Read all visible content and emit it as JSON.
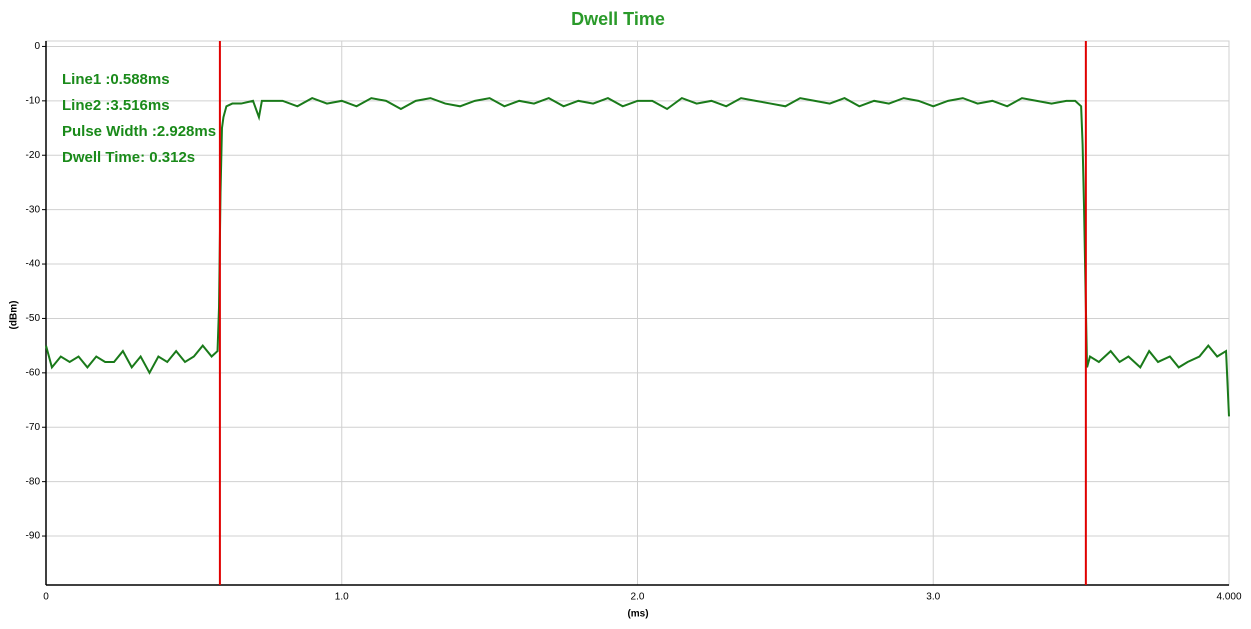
{
  "chart_data": {
    "type": "line",
    "title": "Dwell Time",
    "xlabel": "(ms)",
    "ylabel": "(dBm)",
    "annotations": [
      "Line1 :0.588ms",
      "Line2 :3.516ms",
      "Pulse Width :2.928ms",
      "Dwell Time: 0.312s"
    ],
    "markers": [
      {
        "x": 0.588,
        "color": "#e00000"
      },
      {
        "x": 3.516,
        "color": "#e00000"
      }
    ],
    "xlim": [
      0,
      4
    ],
    "ylim": [
      -99,
      1
    ],
    "xticks": [
      0,
      {
        "value": 1,
        "label": "1.0"
      },
      {
        "value": 2,
        "label": "2.0"
      },
      {
        "value": 3,
        "label": "3.0"
      },
      {
        "value": 4,
        "label": "4.000"
      }
    ],
    "yticks": [
      0,
      -10,
      -20,
      -30,
      -40,
      -50,
      -60,
      -70,
      -80,
      -90
    ],
    "grid": true,
    "series": [
      {
        "color": "#1a7a1a",
        "x": [
          0,
          0.02,
          0.05,
          0.08,
          0.11,
          0.14,
          0.17,
          0.2,
          0.23,
          0.26,
          0.29,
          0.32,
          0.35,
          0.38,
          0.41,
          0.44,
          0.47,
          0.5,
          0.53,
          0.56,
          0.58,
          0.585,
          0.59,
          0.595,
          0.6,
          0.61,
          0.63,
          0.66,
          0.7,
          0.72,
          0.73,
          0.76,
          0.8,
          0.85,
          0.9,
          0.95,
          1.0,
          1.05,
          1.1,
          1.15,
          1.2,
          1.25,
          1.3,
          1.35,
          1.4,
          1.45,
          1.5,
          1.55,
          1.6,
          1.65,
          1.7,
          1.75,
          1.8,
          1.85,
          1.9,
          1.95,
          2.0,
          2.05,
          2.1,
          2.15,
          2.2,
          2.25,
          2.3,
          2.35,
          2.4,
          2.45,
          2.5,
          2.55,
          2.6,
          2.65,
          2.7,
          2.75,
          2.8,
          2.85,
          2.9,
          2.95,
          3.0,
          3.05,
          3.1,
          3.15,
          3.2,
          3.25,
          3.3,
          3.35,
          3.4,
          3.45,
          3.48,
          3.5,
          3.505,
          3.51,
          3.515,
          3.52,
          3.53,
          3.56,
          3.6,
          3.63,
          3.66,
          3.7,
          3.73,
          3.76,
          3.8,
          3.83,
          3.86,
          3.9,
          3.93,
          3.96,
          3.99,
          4.0
        ],
        "values": [
          -55,
          -59,
          -57,
          -58,
          -57,
          -59,
          -57,
          -58,
          -58,
          -56,
          -59,
          -57,
          -60,
          -57,
          -58,
          -56,
          -58,
          -57,
          -55,
          -57,
          -56,
          -48,
          -27,
          -15,
          -13,
          -11,
          -10.5,
          -10.5,
          -10,
          -13,
          -10,
          -10,
          -10,
          -11,
          -9.5,
          -10.5,
          -10,
          -11,
          -9.5,
          -10,
          -11.5,
          -10,
          -9.5,
          -10.5,
          -11,
          -10,
          -9.5,
          -11,
          -10,
          -10.5,
          -9.5,
          -11,
          -10,
          -10.5,
          -9.5,
          -11,
          -10,
          -10,
          -11.5,
          -9.5,
          -10.5,
          -10,
          -11,
          -9.5,
          -10,
          -10.5,
          -11,
          -9.5,
          -10,
          -10.5,
          -9.5,
          -11,
          -10,
          -10.5,
          -9.5,
          -10,
          -11,
          -10,
          -9.5,
          -10.5,
          -10,
          -11,
          -9.5,
          -10,
          -10.5,
          -10,
          -10,
          -11,
          -18,
          -30,
          -45,
          -59,
          -57,
          -58,
          -56,
          -58,
          -57,
          -59,
          -56,
          -58,
          -57,
          -59,
          -58,
          -57,
          -55,
          -57,
          -56,
          -68
        ]
      }
    ]
  }
}
